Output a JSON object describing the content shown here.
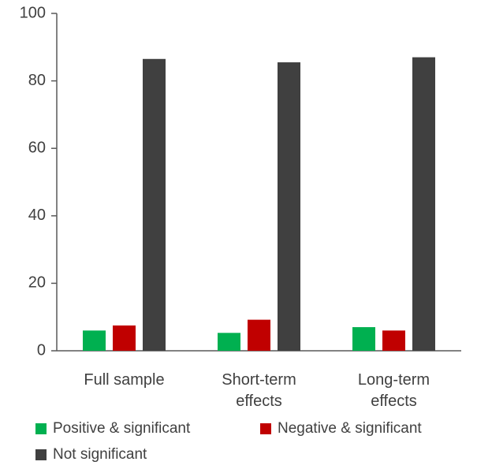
{
  "chart_data": {
    "type": "bar",
    "categories": [
      "Full sample",
      "Short-term effects",
      "Long-term effects"
    ],
    "series": [
      {
        "name": "Positive & significant",
        "color": "#00b050",
        "values": [
          6,
          5.3,
          7
        ]
      },
      {
        "name": "Negative & significant",
        "color": "#c00000",
        "values": [
          7.5,
          9.2,
          6
        ]
      },
      {
        "name": "Not significant",
        "color": "#404040",
        "values": [
          86.5,
          85.5,
          87
        ]
      }
    ],
    "ylim": [
      0,
      100
    ],
    "yticks": [
      0,
      20,
      40,
      60,
      80,
      100
    ],
    "grid": false,
    "legend": "bottom"
  }
}
